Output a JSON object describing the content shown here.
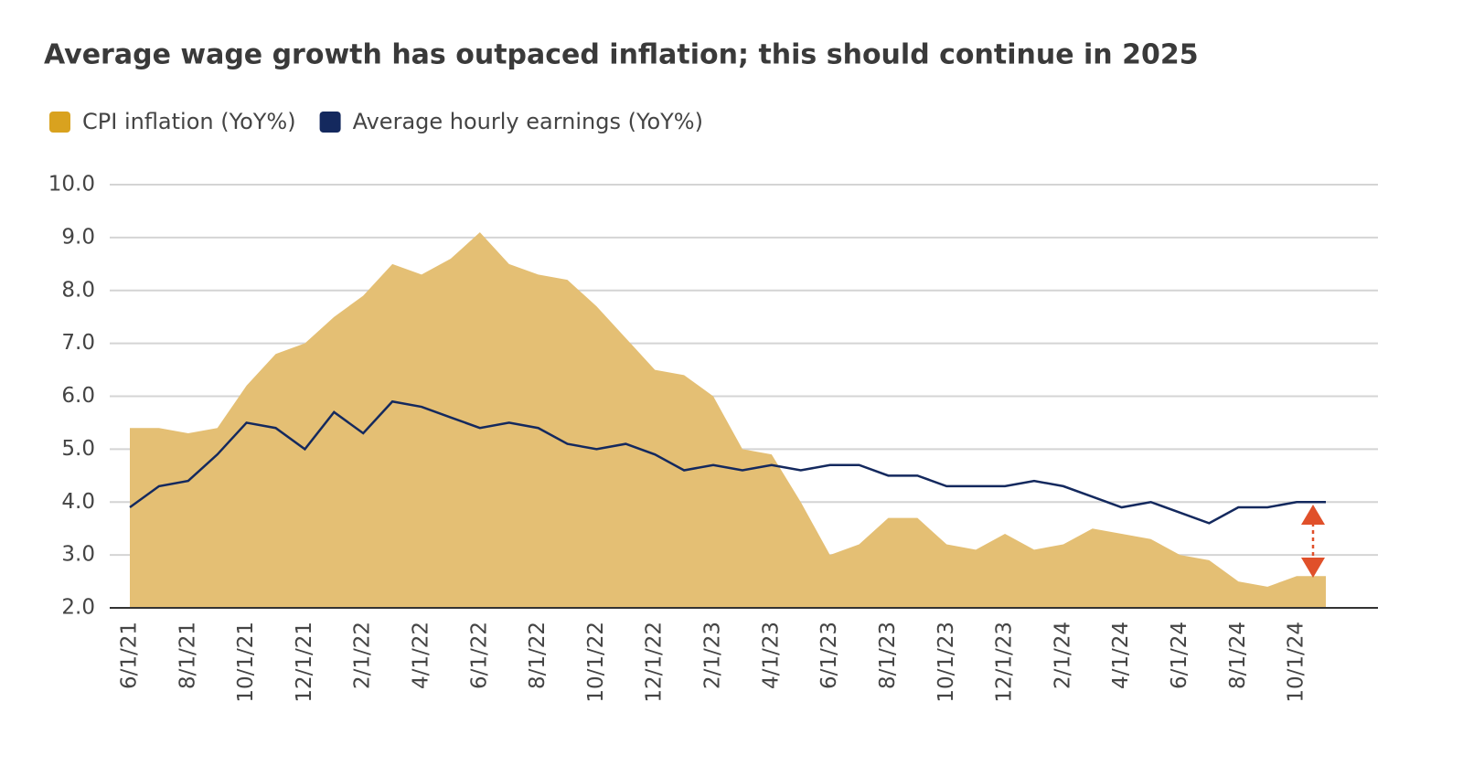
{
  "chart_data": {
    "type": "area-line",
    "title": "Average wage growth has outpaced inflation; this should continue in 2025",
    "categories": [
      "6/1/21",
      null,
      "8/1/21",
      null,
      "10/1/21",
      null,
      "12/1/21",
      null,
      "2/1/22",
      null,
      "4/1/22",
      null,
      "6/1/22",
      null,
      "8/1/22",
      null,
      "10/1/22",
      null,
      "12/1/22",
      null,
      "2/1/23",
      null,
      "4/1/23",
      null,
      "6/1/23",
      null,
      "8/1/23",
      null,
      "10/1/23",
      null,
      "12/1/23",
      null,
      "2/1/24",
      null,
      "4/1/24",
      null,
      "6/1/24",
      null,
      "8/1/24",
      null,
      "10/1/24",
      null
    ],
    "series": [
      {
        "name": "CPI inflation (YoY%)",
        "kind": "area",
        "color": "#d9a21f",
        "fill": "#e4bf74",
        "values": [
          5.4,
          5.4,
          5.3,
          5.4,
          6.2,
          6.8,
          7.0,
          7.5,
          7.9,
          8.5,
          8.3,
          8.6,
          9.1,
          8.5,
          8.3,
          8.2,
          7.7,
          7.1,
          6.5,
          6.4,
          6.0,
          5.0,
          4.9,
          4.0,
          3.0,
          3.2,
          3.7,
          3.7,
          3.2,
          3.1,
          3.4,
          3.1,
          3.2,
          3.5,
          3.4,
          3.3,
          3.0,
          2.9,
          2.5,
          2.4,
          2.6,
          2.6
        ]
      },
      {
        "name": "Average hourly earnings (YoY%)",
        "kind": "line",
        "color": "#14295e",
        "values": [
          3.9,
          4.3,
          4.4,
          4.9,
          5.5,
          5.4,
          5.0,
          5.7,
          5.3,
          5.9,
          5.8,
          5.6,
          5.4,
          5.5,
          5.4,
          5.1,
          5.0,
          5.1,
          4.9,
          4.6,
          4.7,
          4.6,
          4.7,
          4.6,
          4.7,
          4.7,
          4.5,
          4.5,
          4.3,
          4.3,
          4.3,
          4.4,
          4.3,
          4.1,
          3.9,
          4.0,
          3.8,
          3.6,
          3.9,
          3.9,
          4.0,
          4.0
        ]
      }
    ],
    "ylim": [
      2,
      10
    ],
    "yticks": [
      {
        "value": 2,
        "label": "2.0"
      },
      {
        "value": 3,
        "label": "3.0"
      },
      {
        "value": 4,
        "label": "4.0"
      },
      {
        "value": 5,
        "label": "5.0"
      },
      {
        "value": 6,
        "label": "6.0"
      },
      {
        "value": 7,
        "label": "7.0"
      },
      {
        "value": 8,
        "label": "8.0"
      },
      {
        "value": 9,
        "label": "9.0"
      },
      {
        "value": 10,
        "label": "10.0"
      }
    ],
    "grid": true
  }
}
